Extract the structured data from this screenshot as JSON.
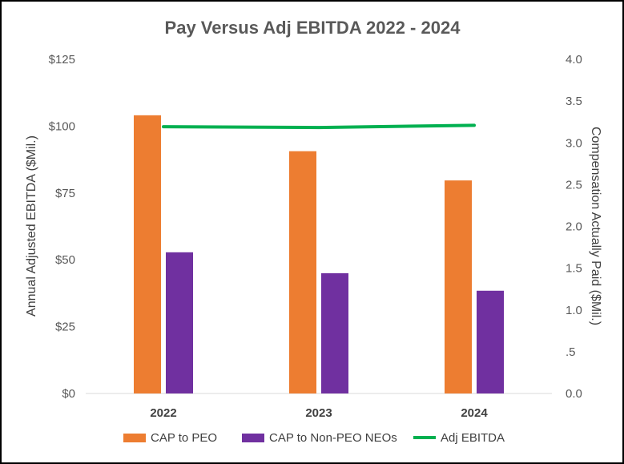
{
  "chart_data": {
    "type": "bar",
    "title": "Pay Versus Adj EBITDA 2022 - 2024",
    "categories": [
      "2022",
      "2023",
      "2024"
    ],
    "ylabel": "Annual Adjusted EBITDA ($Mil.)",
    "y2label": "Compensation Actually Paid ($Mil.)",
    "ylim": [
      0,
      125
    ],
    "y2lim": [
      0,
      4.0
    ],
    "y_ticks": [
      "$0",
      "$25",
      "$50",
      "$75",
      "$100",
      "$125"
    ],
    "y_tick_values": [
      0,
      25,
      50,
      75,
      100,
      125
    ],
    "y2_ticks": [
      "0.0",
      ".5",
      "1.0",
      "1.5",
      "2.0",
      "2.5",
      "3.0",
      "3.5",
      "4.0"
    ],
    "y2_tick_values": [
      0,
      0.5,
      1.0,
      1.5,
      2.0,
      2.5,
      3.0,
      3.5,
      4.0
    ],
    "grid": false,
    "legend_position": "bottom",
    "series": [
      {
        "name": "CAP to PEO",
        "type": "bar",
        "axis": "right",
        "color": "#ED7D31",
        "values": [
          3.33,
          2.9,
          2.55
        ]
      },
      {
        "name": "CAP to Non-PEO NEOs",
        "type": "bar",
        "axis": "right",
        "color": "#7030A0",
        "values": [
          1.69,
          1.44,
          1.23
        ]
      },
      {
        "name": "Adj EBITDA",
        "type": "line",
        "axis": "left",
        "color": "#00B050",
        "values": [
          99.8,
          99.5,
          100.3
        ]
      }
    ]
  }
}
